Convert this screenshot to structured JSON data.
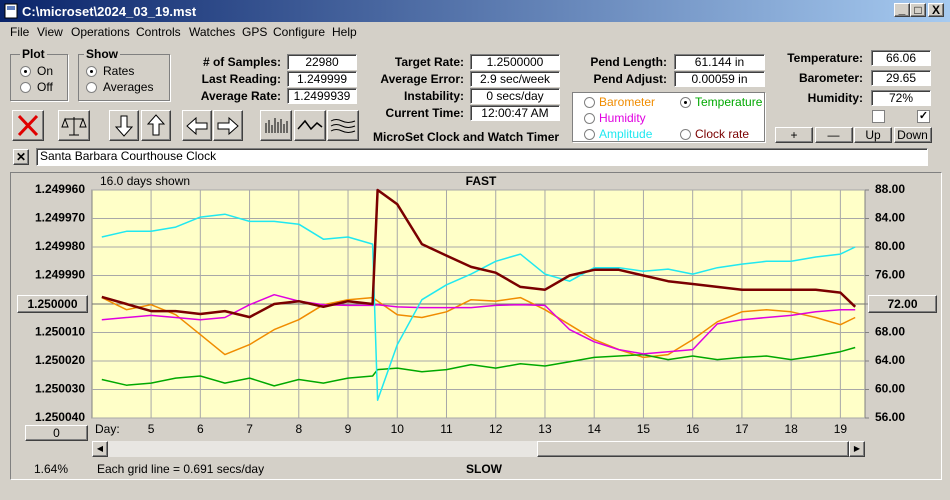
{
  "window": {
    "title": "C:\\microset\\2024_03_19.mst",
    "controls": [
      "_",
      "□",
      "X"
    ]
  },
  "menu": [
    "File",
    "View",
    "Operations",
    "Controls",
    "Watches",
    "GPS",
    "Configure",
    "Help"
  ],
  "plot_group": {
    "title": "Plot",
    "options": [
      "On",
      "Off"
    ],
    "selected": 0
  },
  "show_group": {
    "title": "Show",
    "options": [
      "Rates",
      "Averages"
    ],
    "selected": 0
  },
  "fields": [
    [
      {
        "label": "# of Samples:",
        "value": "22980"
      },
      {
        "label": "Last Reading:",
        "value": "1.249999"
      },
      {
        "label": "Average Rate:",
        "value": "1.2499939"
      }
    ],
    [
      {
        "label": "Target Rate:",
        "value": "1.2500000"
      },
      {
        "label": "Average Error:",
        "value": "2.9 sec/week"
      },
      {
        "label": "Instability:",
        "value": "0 secs/day"
      },
      {
        "label": "Current Time:",
        "value": "12:00:47 AM"
      }
    ],
    [
      {
        "label": "Pend Length:",
        "value": "61.144 in"
      },
      {
        "label": "Pend Adjust:",
        "value": "0.00059 in"
      }
    ],
    [
      {
        "label": "Temperature:",
        "value": "66.06"
      },
      {
        "label": "Barometer:",
        "value": "29.65"
      },
      {
        "label": "Humidity:",
        "value": "72%"
      }
    ]
  ],
  "app_title": "MicroSet Clock and Watch Timer",
  "buttons": [
    "+",
    "—",
    "Up",
    "Down"
  ],
  "watch_name": "Santa Barbara Courthouse Clock",
  "chart_data": {
    "type": "line",
    "days_shown": "16.0 days shown",
    "top_label": "FAST",
    "bottom_label": "SLOW",
    "x_label": "Day:",
    "grid_note": "Each grid line = 0.691 secs/day",
    "status": "1.64%",
    "reset_button": "0",
    "grid": true,
    "y_inverted": true,
    "legend_selected": 1,
    "xlim": [
      3.8,
      19.5
    ],
    "xticks": [
      5,
      6,
      7,
      8,
      9,
      10,
      11,
      12,
      13,
      14,
      15,
      16,
      17,
      18,
      19
    ],
    "ylim": [
      1.24996,
      1.25004
    ],
    "yticks": [
      {
        "value": 1.24996,
        "label": "1.249960"
      },
      {
        "value": 1.24997,
        "label": "1.249970"
      },
      {
        "value": 1.24998,
        "label": "1.249980"
      },
      {
        "value": 1.24999,
        "label": "1.249990"
      },
      {
        "value": 1.25001,
        "label": "1.250010"
      },
      {
        "value": 1.25002,
        "label": "1.250020"
      },
      {
        "value": 1.25003,
        "label": "1.250030"
      },
      {
        "value": 1.25004,
        "label": "1.250040"
      }
    ],
    "y_center": {
      "value": 1.25,
      "label": "1.250000"
    },
    "y2lim": [
      56,
      88
    ],
    "y2ticks": [
      {
        "value": 88,
        "label": "88.00"
      },
      {
        "value": 84,
        "label": "84.00"
      },
      {
        "value": 80,
        "label": "80.00"
      },
      {
        "value": 76,
        "label": "76.00"
      },
      {
        "value": 68,
        "label": "68.00"
      },
      {
        "value": 64,
        "label": "64.00"
      },
      {
        "value": 60,
        "label": "60.00"
      },
      {
        "value": 56,
        "label": "56.00"
      }
    ],
    "y2_center": {
      "value": 72,
      "label": "72.00"
    },
    "x": [
      4,
      4.5,
      5,
      5.5,
      6,
      6.5,
      7,
      7.5,
      8,
      8.5,
      9,
      9.5,
      9.6,
      10,
      10.5,
      11,
      11.5,
      12,
      12.5,
      13,
      13.5,
      14,
      14.5,
      15,
      15.5,
      16,
      16.5,
      17,
      17.5,
      18,
      18.5,
      19,
      19.3
    ],
    "series": [
      {
        "name": "Barometer",
        "color": "#f08c00",
        "axis": "y2",
        "values": [
          72.9,
          71.2,
          71.9,
          70.5,
          67.7,
          64.9,
          66.3,
          68.4,
          69.8,
          71.9,
          72.6,
          72.9,
          72.4,
          70.5,
          70.1,
          70.9,
          72.6,
          72.4,
          72.9,
          71.2,
          69.1,
          67.0,
          65.6,
          64.5,
          64.9,
          67.0,
          69.5,
          70.9,
          71.2,
          70.9,
          70.1,
          69.1,
          70.1
        ]
      },
      {
        "name": "Temperature",
        "color": "#00a800",
        "axis": "y2",
        "values": [
          61.4,
          60.6,
          60.9,
          61.6,
          61.9,
          60.9,
          61.6,
          60.5,
          61.4,
          60.9,
          61.6,
          61.9,
          62.8,
          63.0,
          62.5,
          62.8,
          63.5,
          63.0,
          63.6,
          63.3,
          63.9,
          64.5,
          64.7,
          64.9,
          64.2,
          64.7,
          64.2,
          64.5,
          64.7,
          64.2,
          64.7,
          65.3,
          65.9
        ]
      },
      {
        "name": "Humidity",
        "color": "#e000e0",
        "axis": "y2",
        "values": [
          69.8,
          70.1,
          70.4,
          70.1,
          69.8,
          70.1,
          71.9,
          73.3,
          72.4,
          71.9,
          71.8,
          71.8,
          71.9,
          71.6,
          71.5,
          71.5,
          71.5,
          71.8,
          71.9,
          71.8,
          68.4,
          66.7,
          65.6,
          65.0,
          65.3,
          65.6,
          69.2,
          69.8,
          70.1,
          70.4,
          70.9,
          71.2,
          71.2
        ]
      },
      {
        "name": "Amplitude",
        "color": "#20e8f0",
        "axis": "y2",
        "values": [
          81.4,
          82.2,
          82.2,
          82.8,
          84.2,
          84.6,
          83.6,
          83.6,
          83.2,
          81.1,
          81.4,
          80.4,
          58.5,
          66.3,
          72.6,
          74.7,
          76.2,
          78.0,
          79.0,
          76.2,
          75.2,
          77.1,
          77.1,
          76.6,
          76.9,
          76.2,
          77.1,
          77.6,
          78.0,
          78.0,
          78.6,
          79.0,
          80.0
        ]
      },
      {
        "name": "Clock rate",
        "color": "#7a0000",
        "axis": "y",
        "values": [
          1.2499975,
          1.25,
          1.2500025,
          1.2500025,
          1.2500035,
          1.2500025,
          1.2500046,
          1.25,
          1.249999,
          1.250001,
          1.249999,
          1.25,
          1.24996,
          1.249965,
          1.249979,
          1.249983,
          1.249987,
          1.249989,
          1.249994,
          1.249995,
          1.24999,
          1.249988,
          1.249988,
          1.24999,
          1.249992,
          1.249993,
          1.249994,
          1.249995,
          1.249995,
          1.249995,
          1.249995,
          1.249996,
          1.250001
        ]
      }
    ]
  }
}
